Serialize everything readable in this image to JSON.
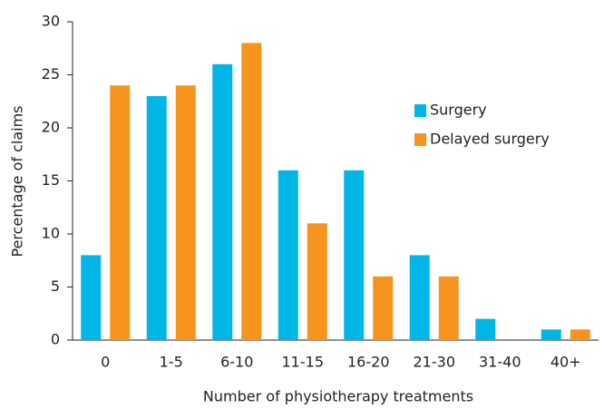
{
  "chart_data": {
    "type": "bar",
    "x_label": "Number of physiotherapy treatments",
    "y_label": "Percentage of claims",
    "categories": [
      "0",
      "1-5",
      "6-10",
      "11-15",
      "16-20",
      "21-30",
      "31-40",
      "40+"
    ],
    "series": [
      {
        "name": "Surgery",
        "color": "#00b6e6",
        "values": [
          8,
          23,
          26,
          16,
          16,
          8,
          2,
          1
        ]
      },
      {
        "name": "Delayed surgery",
        "color": "#f7941d",
        "values": [
          24,
          24,
          28,
          11,
          6,
          6,
          0,
          1
        ]
      }
    ],
    "ylim": [
      0,
      30
    ],
    "yticks": [
      0,
      5,
      10,
      15,
      20,
      25,
      30
    ],
    "legend": "upper right"
  }
}
